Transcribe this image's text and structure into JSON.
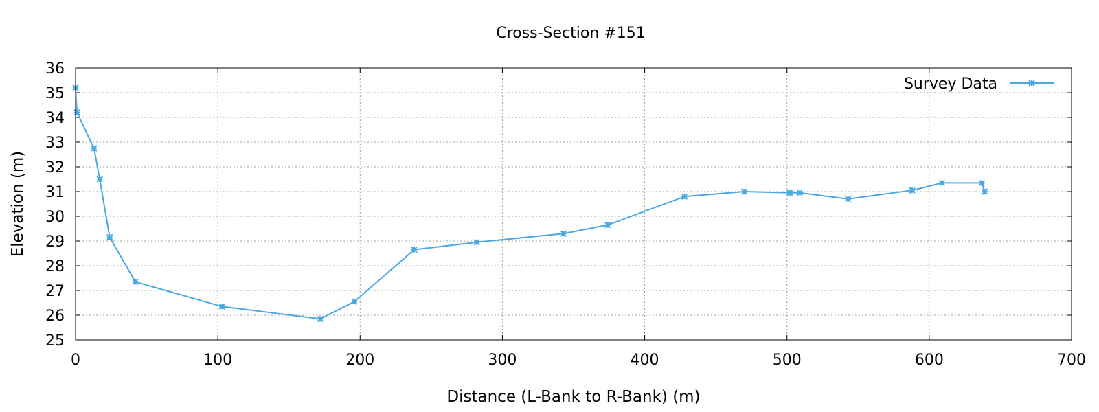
{
  "chart_data": {
    "type": "line",
    "title": "Cross-Section #151",
    "xlabel": "Distance (L-Bank to R-Bank) (m)",
    "ylabel": "Elevation (m)",
    "xlim": [
      0,
      700
    ],
    "ylim": [
      25,
      36
    ],
    "xticks": [
      0,
      100,
      200,
      300,
      400,
      500,
      600,
      700
    ],
    "yticks": [
      25,
      26,
      27,
      28,
      29,
      30,
      31,
      32,
      33,
      34,
      35,
      36
    ],
    "grid": true,
    "legend_position": "top-right",
    "series": [
      {
        "name": "Survey Data",
        "color": "#4aa8e0",
        "marker": "x-star",
        "points": [
          [
            0,
            35.2
          ],
          [
            1,
            34.2
          ],
          [
            13,
            32.75
          ],
          [
            17,
            31.5
          ],
          [
            24,
            29.15
          ],
          [
            42,
            27.35
          ],
          [
            103,
            26.35
          ],
          [
            172,
            25.85
          ],
          [
            196,
            26.55
          ],
          [
            238,
            28.65
          ],
          [
            282,
            28.95
          ],
          [
            343,
            29.3
          ],
          [
            374,
            29.65
          ],
          [
            428,
            30.8
          ],
          [
            470,
            31.0
          ],
          [
            502,
            30.95
          ],
          [
            509,
            30.95
          ],
          [
            543,
            30.7
          ],
          [
            588,
            31.05
          ],
          [
            609,
            31.35
          ],
          [
            637,
            31.35
          ],
          [
            639,
            31.0
          ]
        ]
      }
    ]
  }
}
